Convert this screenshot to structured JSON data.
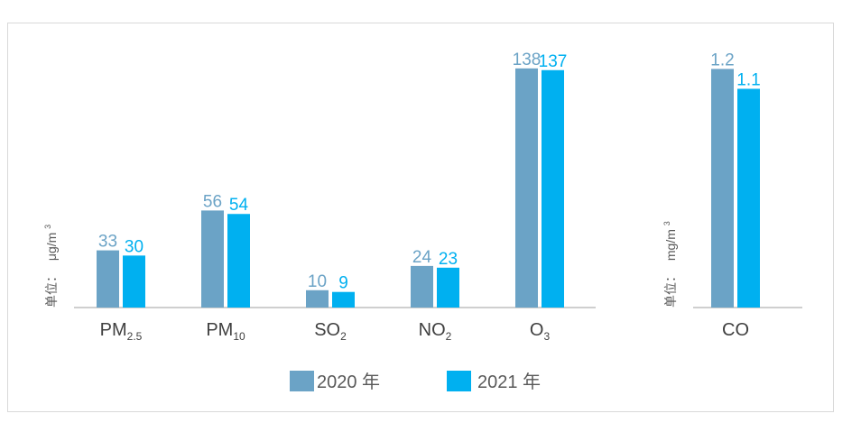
{
  "chart_data": [
    {
      "type": "bar",
      "categories": [
        {
          "main": "PM",
          "sub": "2.5"
        },
        {
          "main": "PM",
          "sub": "10"
        },
        {
          "main": "SO",
          "sub": "2"
        },
        {
          "main": "NO",
          "sub": "2"
        },
        {
          "main": "O",
          "sub": "3"
        }
      ],
      "unit": {
        "prefix": "单位：",
        "text": "μg/m",
        "sup": "3"
      },
      "series": [
        {
          "name": "2020 年",
          "values": [
            33,
            56,
            10,
            24,
            138
          ],
          "color": "#6BA3C6"
        },
        {
          "name": "2021 年",
          "values": [
            30,
            54,
            9,
            23,
            137
          ],
          "color": "#00B0F0"
        }
      ],
      "ylim": [
        0,
        140
      ],
      "grid": false
    },
    {
      "type": "bar",
      "categories": [
        {
          "main": "CO",
          "sub": ""
        }
      ],
      "unit": {
        "prefix": "单位：",
        "text": "mg/m",
        "sup": "3"
      },
      "series": [
        {
          "name": "2020 年",
          "values": [
            1.2
          ],
          "color": "#6BA3C6"
        },
        {
          "name": "2021 年",
          "values": [
            1.1
          ],
          "color": "#00B0F0"
        }
      ],
      "ylim": [
        0,
        1.22
      ],
      "grid": false
    }
  ],
  "legend": {
    "position": "bottom",
    "items": [
      {
        "label": "2020 年",
        "color": "#6BA3C6"
      },
      {
        "label": "2021 年",
        "color": "#00B0F0"
      }
    ]
  }
}
